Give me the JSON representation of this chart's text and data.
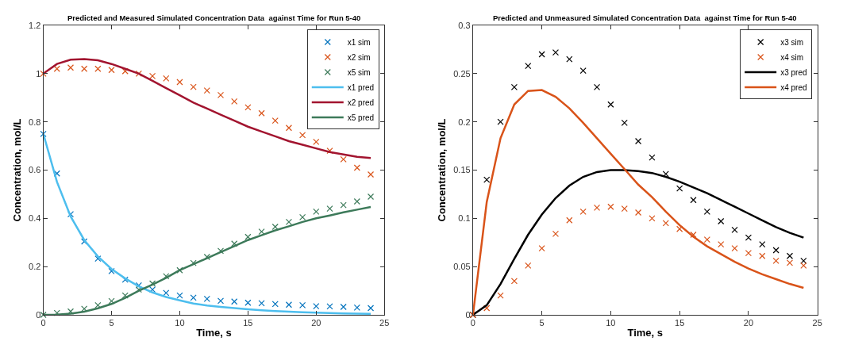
{
  "chart_data": [
    {
      "type": "line",
      "title": "Predicted and Measured Simulated Concentration Data  against Time for Run 5-40",
      "xlabel": "Time, s",
      "ylabel": "Concentration, mol/L",
      "x": [
        0,
        1,
        2,
        3,
        4,
        5,
        6,
        7,
        8,
        9,
        10,
        11,
        12,
        13,
        14,
        15,
        16,
        17,
        18,
        19,
        20,
        21,
        22,
        23,
        24
      ],
      "xlim": [
        0,
        25
      ],
      "xticks": [
        0,
        5,
        10,
        15,
        20,
        25
      ],
      "ylim": [
        0,
        1.2
      ],
      "yticks": [
        0,
        0.2,
        0.4,
        0.6,
        0.8,
        1,
        1.2
      ],
      "grid": false,
      "legend": "top right",
      "series": [
        {
          "name": "x1 sim",
          "type": "scatter",
          "marker": "cross",
          "color": "#0072bd",
          "values": [
            0.75,
            0.586,
            0.417,
            0.304,
            0.233,
            0.181,
            0.146,
            0.122,
            0.105,
            0.091,
            0.08,
            0.071,
            0.066,
            0.058,
            0.055,
            0.05,
            0.048,
            0.045,
            0.042,
            0.04,
            0.036,
            0.035,
            0.033,
            0.03,
            0.028
          ]
        },
        {
          "name": "x2 sim",
          "type": "scatter",
          "marker": "cross",
          "color": "#d95319",
          "values": [
            1.0,
            1.02,
            1.025,
            1.02,
            1.02,
            1.015,
            1.01,
            1.0,
            0.99,
            0.98,
            0.965,
            0.945,
            0.93,
            0.911,
            0.885,
            0.86,
            0.836,
            0.805,
            0.775,
            0.745,
            0.717,
            0.68,
            0.645,
            0.61,
            0.582
          ]
        },
        {
          "name": "x5 sim",
          "type": "scatter",
          "marker": "cross",
          "color": "#3d7a5a",
          "values": [
            0,
            0.008,
            0.014,
            0.025,
            0.04,
            0.057,
            0.08,
            0.105,
            0.13,
            0.16,
            0.185,
            0.215,
            0.24,
            0.265,
            0.295,
            0.323,
            0.345,
            0.365,
            0.385,
            0.405,
            0.428,
            0.44,
            0.455,
            0.47,
            0.49
          ]
        },
        {
          "name": "x1 pred",
          "line_style": "solid",
          "color": "#4dbeee",
          "values": [
            0.75,
            0.551,
            0.408,
            0.31,
            0.242,
            0.19,
            0.151,
            0.118,
            0.093,
            0.074,
            0.06,
            0.047,
            0.039,
            0.033,
            0.028,
            0.023,
            0.019,
            0.016,
            0.013,
            0.011,
            0.009,
            0.007,
            0.006,
            0.005,
            0.004
          ]
        },
        {
          "name": "x2 pred",
          "line_style": "solid",
          "color": "#a2142f",
          "values": [
            1.0,
            1.04,
            1.058,
            1.06,
            1.055,
            1.04,
            1.02,
            1.0,
            0.97,
            0.94,
            0.91,
            0.88,
            0.855,
            0.83,
            0.805,
            0.78,
            0.76,
            0.74,
            0.72,
            0.705,
            0.69,
            0.675,
            0.665,
            0.655,
            0.65
          ]
        },
        {
          "name": "x5 pred",
          "line_style": "solid",
          "color": "#3d7a5a",
          "values": [
            0,
            0.001,
            0.005,
            0.013,
            0.027,
            0.045,
            0.07,
            0.1,
            0.125,
            0.153,
            0.185,
            0.21,
            0.235,
            0.26,
            0.285,
            0.31,
            0.33,
            0.35,
            0.367,
            0.385,
            0.4,
            0.412,
            0.425,
            0.436,
            0.447
          ]
        }
      ]
    },
    {
      "type": "line",
      "title": "Predicted and Unmeasured Simulated Concentration Data  against Time for Run 5-40",
      "xlabel": "Time, s",
      "ylabel": "Concentration, mol/L",
      "x": [
        0,
        1,
        2,
        3,
        4,
        5,
        6,
        7,
        8,
        9,
        10,
        11,
        12,
        13,
        14,
        15,
        16,
        17,
        18,
        19,
        20,
        21,
        22,
        23,
        24
      ],
      "xlim": [
        0,
        25
      ],
      "xticks": [
        0,
        5,
        10,
        15,
        20,
        25
      ],
      "ylim": [
        0,
        0.3
      ],
      "yticks": [
        0,
        0.05,
        0.1,
        0.15,
        0.2,
        0.25,
        0.3
      ],
      "grid": false,
      "legend": "top right",
      "series": [
        {
          "name": "x3 sim",
          "type": "scatter",
          "marker": "cross",
          "color": "#000000",
          "values": [
            0,
            0.14,
            0.2,
            0.236,
            0.258,
            0.27,
            0.272,
            0.265,
            0.253,
            0.236,
            0.218,
            0.199,
            0.18,
            0.163,
            0.146,
            0.131,
            0.119,
            0.107,
            0.097,
            0.088,
            0.08,
            0.073,
            0.067,
            0.061,
            0.056
          ]
        },
        {
          "name": "x4 sim",
          "type": "scatter",
          "marker": "cross",
          "color": "#d95319",
          "values": [
            0,
            0.007,
            0.02,
            0.035,
            0.051,
            0.069,
            0.084,
            0.098,
            0.107,
            0.111,
            0.112,
            0.11,
            0.106,
            0.1,
            0.095,
            0.089,
            0.083,
            0.078,
            0.073,
            0.069,
            0.064,
            0.061,
            0.056,
            0.054,
            0.051
          ]
        },
        {
          "name": "x3 pred",
          "line_style": "solid",
          "color": "#000000",
          "values": [
            0,
            0.01,
            0.032,
            0.058,
            0.083,
            0.104,
            0.121,
            0.134,
            0.143,
            0.148,
            0.15,
            0.15,
            0.149,
            0.147,
            0.143,
            0.138,
            0.132,
            0.126,
            0.119,
            0.112,
            0.105,
            0.098,
            0.091,
            0.085,
            0.08
          ]
        },
        {
          "name": "x4 pred",
          "line_style": "solid",
          "color": "#d95319",
          "values": [
            0,
            0.117,
            0.183,
            0.218,
            0.232,
            0.233,
            0.226,
            0.214,
            0.199,
            0.183,
            0.167,
            0.151,
            0.135,
            0.122,
            0.107,
            0.093,
            0.081,
            0.071,
            0.063,
            0.055,
            0.048,
            0.042,
            0.037,
            0.032,
            0.028
          ]
        }
      ]
    }
  ]
}
